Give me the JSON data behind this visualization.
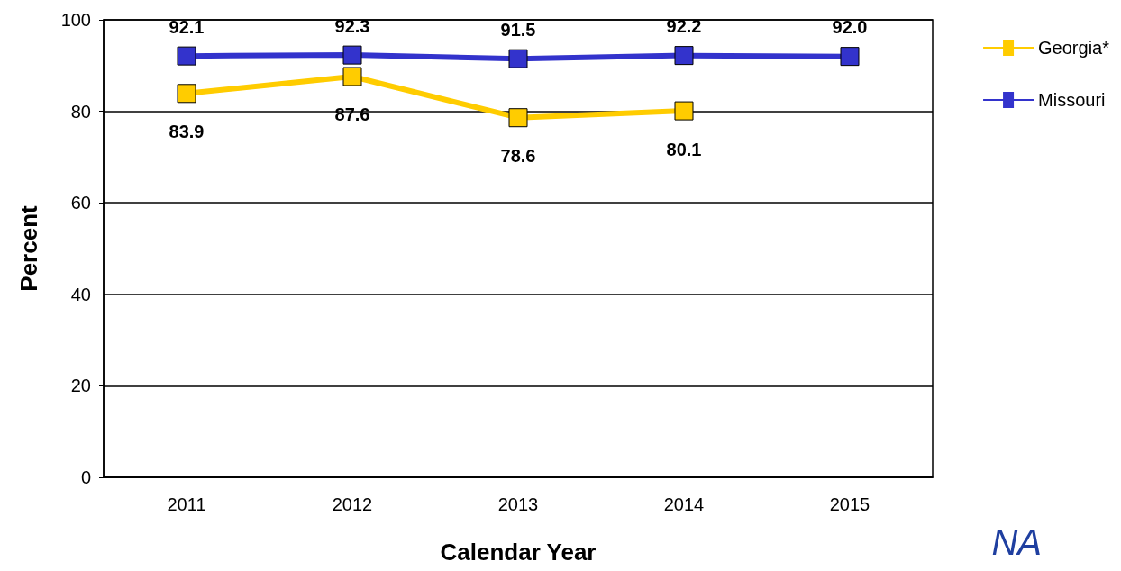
{
  "chart_data": {
    "type": "line",
    "xlabel": "Calendar Year",
    "ylabel": "Percent",
    "categories": [
      "2011",
      "2012",
      "2013",
      "2014",
      "2015"
    ],
    "series": [
      {
        "name": "Georgia*",
        "color": "#ffcc00",
        "values": [
          83.9,
          87.6,
          78.6,
          80.1,
          null
        ],
        "value_labels": [
          "83.9",
          "87.6",
          "78.6",
          "80.1",
          null
        ]
      },
      {
        "name": "Missouri",
        "color": "#3333cc",
        "values": [
          92.1,
          92.3,
          91.5,
          92.2,
          92.0
        ],
        "value_labels": [
          "92.1",
          "92.3",
          "91.5",
          "92.2",
          "92.0"
        ]
      }
    ],
    "ylim": [
      0,
      100
    ],
    "yticks": [
      0,
      20,
      40,
      60,
      80,
      100
    ],
    "grid": "y",
    "legend": "top right",
    "marker": "square",
    "line_style": "solid",
    "annotations": [
      "NA"
    ]
  }
}
